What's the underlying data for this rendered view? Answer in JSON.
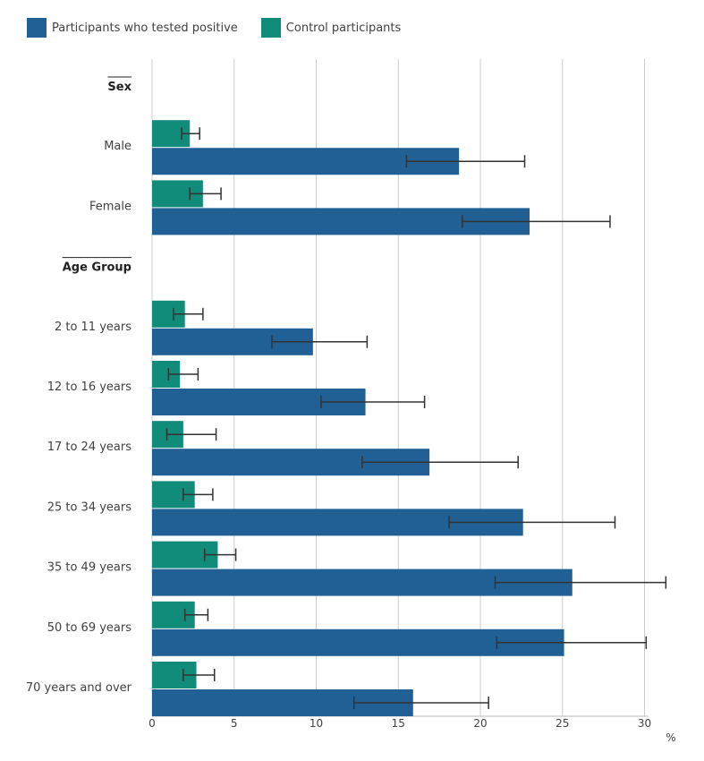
{
  "legend": {
    "positive_label": "Participants who tested positive",
    "control_label": "Control participants"
  },
  "colors": {
    "positive": "#206095",
    "control": "#118c7b",
    "grid": "#cccccc",
    "error_bar": "#333333",
    "text": "#414042"
  },
  "chart_data": {
    "type": "bar",
    "orientation": "horizontal",
    "legend_position": "top-left",
    "grid": true,
    "x_ticks": [
      0,
      5,
      10,
      15,
      20,
      25,
      30
    ],
    "x_unit": "%",
    "xlim": [
      0,
      32
    ],
    "group_headers": [
      "Sex",
      "Age Group"
    ],
    "rows": [
      {
        "kind": "header",
        "label": "Sex"
      },
      {
        "kind": "data",
        "label": "Male",
        "control": 2.3,
        "control_ci": [
          1.8,
          2.9
        ],
        "positive": 18.7,
        "positive_ci": [
          15.5,
          22.7
        ]
      },
      {
        "kind": "data",
        "label": "Female",
        "control": 3.1,
        "control_ci": [
          2.3,
          4.2
        ],
        "positive": 23.0,
        "positive_ci": [
          18.9,
          27.9
        ]
      },
      {
        "kind": "header",
        "label": "Age Group"
      },
      {
        "kind": "data",
        "label": "2 to 11 years",
        "control": 2.0,
        "control_ci": [
          1.3,
          3.1
        ],
        "positive": 9.8,
        "positive_ci": [
          7.3,
          13.1
        ]
      },
      {
        "kind": "data",
        "label": "12 to 16 years",
        "control": 1.7,
        "control_ci": [
          1.0,
          2.8
        ],
        "positive": 13.0,
        "positive_ci": [
          10.3,
          16.6
        ]
      },
      {
        "kind": "data",
        "label": "17 to 24 years",
        "control": 1.9,
        "control_ci": [
          0.9,
          3.9
        ],
        "positive": 16.9,
        "positive_ci": [
          12.8,
          22.3
        ]
      },
      {
        "kind": "data",
        "label": "25 to 34 years",
        "control": 2.6,
        "control_ci": [
          1.9,
          3.7
        ],
        "positive": 22.6,
        "positive_ci": [
          18.1,
          28.2
        ]
      },
      {
        "kind": "data",
        "label": "35 to 49 years",
        "control": 4.0,
        "control_ci": [
          3.2,
          5.1
        ],
        "positive": 25.6,
        "positive_ci": [
          20.9,
          31.3
        ]
      },
      {
        "kind": "data",
        "label": "50 to 69 years",
        "control": 2.6,
        "control_ci": [
          2.0,
          3.4
        ],
        "positive": 25.1,
        "positive_ci": [
          21.0,
          30.1
        ]
      },
      {
        "kind": "data",
        "label": "70 years and over",
        "control": 2.7,
        "control_ci": [
          1.9,
          3.8
        ],
        "positive": 15.9,
        "positive_ci": [
          12.3,
          20.5
        ]
      }
    ]
  }
}
